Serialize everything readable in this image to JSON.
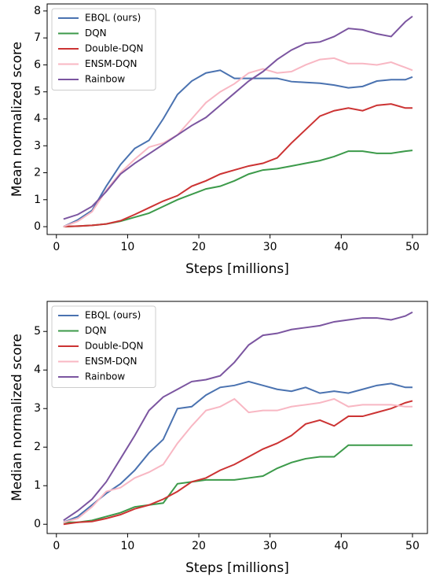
{
  "chart_data": [
    {
      "type": "line",
      "xlabel": "Steps [millions]",
      "ylabel": "Mean normalized score",
      "x": [
        1,
        3,
        5,
        7,
        9,
        11,
        13,
        15,
        17,
        19,
        21,
        23,
        25,
        27,
        29,
        31,
        33,
        35,
        37,
        39,
        41,
        43,
        45,
        47,
        49,
        50
      ],
      "xlim": [
        -1.3,
        52.1
      ],
      "xticks": [
        0,
        10,
        20,
        30,
        40,
        50
      ],
      "ylim": [
        -0.29,
        8.26
      ],
      "yticks": [
        0,
        1,
        2,
        3,
        4,
        5,
        6,
        7,
        8
      ],
      "legend": "upper left",
      "series": [
        {
          "name": "EBQL (ours)",
          "color": "#4a72b0",
          "values": [
            0,
            0.25,
            0.6,
            1.5,
            2.3,
            2.9,
            3.2,
            4.0,
            4.9,
            5.4,
            5.7,
            5.8,
            5.5,
            5.5,
            5.5,
            5.5,
            5.38,
            5.35,
            5.32,
            5.25,
            5.15,
            5.2,
            5.4,
            5.45,
            5.45,
            5.55
          ]
        },
        {
          "name": "DQN",
          "color": "#3c9a4a",
          "values": [
            0,
            0.02,
            0.05,
            0.1,
            0.2,
            0.35,
            0.5,
            0.75,
            1.0,
            1.2,
            1.4,
            1.5,
            1.7,
            1.95,
            2.1,
            2.15,
            2.25,
            2.35,
            2.45,
            2.6,
            2.8,
            2.8,
            2.72,
            2.72,
            2.8,
            2.83
          ]
        },
        {
          "name": "Double-DQN",
          "color": "#cc3333",
          "values": [
            0,
            0.02,
            0.05,
            0.1,
            0.22,
            0.45,
            0.7,
            0.95,
            1.15,
            1.5,
            1.7,
            1.95,
            2.1,
            2.25,
            2.35,
            2.55,
            3.1,
            3.6,
            4.1,
            4.3,
            4.4,
            4.3,
            4.5,
            4.55,
            4.4,
            4.4
          ]
        },
        {
          "name": "ENSM-DQN",
          "color": "#f8b7c3",
          "values": [
            0,
            0.2,
            0.55,
            1.35,
            2.0,
            2.5,
            2.95,
            3.1,
            3.4,
            4.0,
            4.6,
            5.0,
            5.3,
            5.7,
            5.85,
            5.7,
            5.75,
            6.0,
            6.2,
            6.25,
            6.05,
            6.05,
            6.0,
            6.1,
            5.9,
            5.8
          ]
        },
        {
          "name": "Rainbow",
          "color": "#7b55a0",
          "values": [
            0.28,
            0.45,
            0.75,
            1.3,
            1.95,
            2.35,
            2.7,
            3.05,
            3.4,
            3.75,
            4.05,
            4.5,
            4.95,
            5.4,
            5.75,
            6.2,
            6.55,
            6.8,
            6.85,
            7.05,
            7.35,
            7.3,
            7.15,
            7.05,
            7.6,
            7.8
          ]
        }
      ]
    },
    {
      "type": "line",
      "xlabel": "Steps [millions]",
      "ylabel": "Median normalized score",
      "x": [
        1,
        3,
        5,
        7,
        9,
        11,
        13,
        15,
        17,
        19,
        21,
        23,
        25,
        27,
        29,
        31,
        33,
        35,
        37,
        39,
        41,
        43,
        45,
        47,
        49,
        50
      ],
      "xlim": [
        -1.3,
        52.1
      ],
      "xticks": [
        0,
        10,
        20,
        30,
        40,
        50
      ],
      "ylim": [
        -0.24,
        5.78
      ],
      "yticks": [
        0,
        1,
        2,
        3,
        4,
        5
      ],
      "legend": "upper left",
      "series": [
        {
          "name": "EBQL (ours)",
          "color": "#4a72b0",
          "values": [
            0.05,
            0.2,
            0.5,
            0.8,
            1.05,
            1.4,
            1.85,
            2.2,
            3.0,
            3.05,
            3.35,
            3.55,
            3.6,
            3.7,
            3.6,
            3.5,
            3.45,
            3.55,
            3.4,
            3.45,
            3.4,
            3.5,
            3.6,
            3.65,
            3.55,
            3.55
          ]
        },
        {
          "name": "DQN",
          "color": "#3c9a4a",
          "values": [
            0.05,
            0.05,
            0.1,
            0.2,
            0.3,
            0.45,
            0.5,
            0.55,
            1.05,
            1.1,
            1.15,
            1.15,
            1.15,
            1.2,
            1.25,
            1.45,
            1.6,
            1.7,
            1.75,
            1.75,
            2.05,
            2.05,
            2.05,
            2.05,
            2.05,
            2.05
          ]
        },
        {
          "name": "Double-DQN",
          "color": "#cc3333",
          "values": [
            0,
            0.05,
            0.07,
            0.15,
            0.25,
            0.4,
            0.5,
            0.65,
            0.85,
            1.1,
            1.2,
            1.4,
            1.55,
            1.75,
            1.95,
            2.1,
            2.3,
            2.6,
            2.7,
            2.55,
            2.8,
            2.8,
            2.9,
            3.0,
            3.15,
            3.2
          ]
        },
        {
          "name": "ENSM-DQN",
          "color": "#f8b7c3",
          "values": [
            0.05,
            0.15,
            0.45,
            0.85,
            0.95,
            1.2,
            1.35,
            1.55,
            2.1,
            2.55,
            2.95,
            3.05,
            3.25,
            2.9,
            2.95,
            2.95,
            3.05,
            3.1,
            3.15,
            3.25,
            3.05,
            3.1,
            3.1,
            3.1,
            3.05,
            3.05
          ]
        },
        {
          "name": "Rainbow",
          "color": "#7b55a0",
          "values": [
            0.1,
            0.35,
            0.65,
            1.1,
            1.7,
            2.3,
            2.95,
            3.3,
            3.5,
            3.7,
            3.75,
            3.85,
            4.2,
            4.65,
            4.9,
            4.95,
            5.05,
            5.1,
            5.15,
            5.25,
            5.3,
            5.35,
            5.35,
            5.3,
            5.4,
            5.5
          ]
        }
      ]
    }
  ]
}
